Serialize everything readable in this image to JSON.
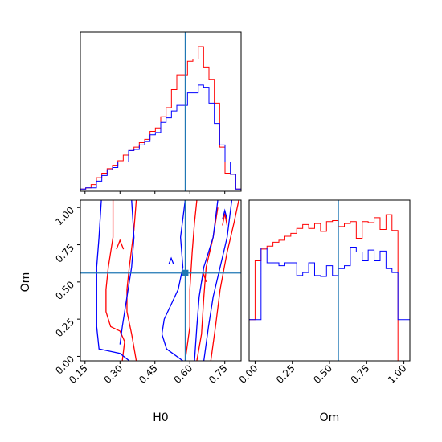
{
  "chart_data": {
    "type": "corner",
    "parameters": [
      "H0",
      "Om"
    ],
    "truths": {
      "H0": 0.58,
      "Om": 0.56
    },
    "colors": {
      "series_a": "#ff0000",
      "series_b": "#0000ff",
      "truth": "#1f77b4"
    },
    "panels": {
      "h0_hist": {
        "type": "histogram",
        "xlim": [
          0.13,
          0.82
        ],
        "bin_edges": [
          0.13,
          0.153,
          0.176,
          0.199,
          0.222,
          0.245,
          0.268,
          0.291,
          0.314,
          0.337,
          0.36,
          0.383,
          0.406,
          0.429,
          0.452,
          0.475,
          0.498,
          0.521,
          0.544,
          0.567,
          0.59,
          0.613,
          0.636,
          0.659,
          0.682,
          0.705,
          0.728,
          0.751,
          0.774,
          0.797,
          0.82
        ],
        "series": [
          {
            "color_key": "series_a",
            "counts": [
              0.2,
              0.3,
              0.6,
              1.2,
              1.6,
              2.0,
              2.3,
              2.7,
              3.2,
              3.6,
              3.9,
              4.3,
              4.6,
              5.3,
              5.6,
              6.6,
              7.4,
              9.0,
              10.3,
              10.3,
              11.5,
              11.7,
              12.8,
              11.0,
              9.9,
              7.8,
              3.9,
              1.6,
              1.5,
              0.2
            ]
          },
          {
            "color_key": "series_b",
            "counts": [
              0.2,
              0.3,
              0.3,
              0.9,
              1.4,
              1.9,
              2.1,
              2.6,
              2.6,
              3.6,
              3.7,
              4.1,
              4.4,
              5.0,
              5.2,
              6.1,
              6.5,
              7.1,
              7.6,
              7.6,
              8.7,
              8.7,
              9.4,
              9.2,
              7.8,
              6.0,
              4.1,
              2.6,
              1.5,
              0.2
            ]
          }
        ]
      },
      "om_hist": {
        "type": "histogram",
        "xlim": [
          -0.04,
          1.04
        ],
        "bin_edges": [
          -0.04,
          0.0,
          0.04,
          0.08,
          0.12,
          0.16,
          0.2,
          0.24,
          0.28,
          0.32,
          0.36,
          0.4,
          0.44,
          0.48,
          0.52,
          0.56,
          0.6,
          0.64,
          0.68,
          0.72,
          0.76,
          0.8,
          0.84,
          0.88,
          0.92,
          0.96,
          1.0,
          1.04
        ],
        "series": [
          {
            "color_key": "series_a",
            "counts": [
              4.2,
              10.2,
              11.4,
              11.7,
              12.1,
              12.3,
              12.7,
              13.0,
              13.5,
              13.9,
              13.5,
              14.0,
              13.2,
              14.2,
              14.3,
              13.7,
              14.0,
              14.2,
              12.5,
              14.2,
              14.1,
              14.6,
              13.4,
              14.9,
              13.3,
              0,
              0
            ]
          },
          {
            "color_key": "series_b",
            "counts": [
              4.2,
              4.2,
              11.5,
              10.0,
              10.0,
              9.7,
              10.0,
              10.0,
              8.7,
              9.0,
              10.0,
              8.7,
              8.6,
              9.7,
              8.7,
              9.4,
              9.7,
              11.6,
              11.1,
              10.2,
              11.3,
              10.2,
              11.2,
              9.4,
              9.0,
              4.2,
              4.2
            ]
          }
        ]
      },
      "h0_om_contour": {
        "type": "contour",
        "xlim": [
          0.13,
          0.82
        ],
        "ylim": [
          -0.03,
          1.05
        ],
        "contours": [
          {
            "color_key": "series_a",
            "points": [
              [
                0.27,
                1.05
              ],
              [
                0.27,
                0.8
              ],
              [
                0.25,
                0.6
              ],
              [
                0.24,
                0.45
              ],
              [
                0.24,
                0.3
              ],
              [
                0.26,
                0.2
              ],
              [
                0.3,
                0.17
              ],
              [
                0.32,
                0.1
              ],
              [
                0.31,
                -0.03
              ]
            ]
          },
          {
            "color_key": "series_a",
            "points": [
              [
                0.37,
                1.05
              ],
              [
                0.36,
                0.85
              ],
              [
                0.34,
                0.6
              ],
              [
                0.33,
                0.45
              ],
              [
                0.33,
                0.3
              ],
              [
                0.35,
                0.15
              ],
              [
                0.37,
                -0.03
              ]
            ]
          },
          {
            "color_key": "series_a",
            "points": [
              [
                0.58,
                -0.03
              ],
              [
                0.6,
                0.2
              ],
              [
                0.6,
                0.45
              ],
              [
                0.61,
                0.7
              ],
              [
                0.62,
                0.9
              ],
              [
                0.63,
                1.05
              ]
            ]
          },
          {
            "color_key": "series_a",
            "points": [
              [
                0.69,
                -0.03
              ],
              [
                0.71,
                0.2
              ],
              [
                0.73,
                0.45
              ],
              [
                0.76,
                0.7
              ],
              [
                0.79,
                0.9
              ],
              [
                0.81,
                1.05
              ]
            ]
          },
          {
            "color_key": "series_a",
            "points": [
              [
                0.63,
                -0.03
              ],
              [
                0.65,
                0.15
              ],
              [
                0.66,
                0.4
              ],
              [
                0.67,
                0.6
              ],
              [
                0.7,
                0.8
              ],
              [
                0.72,
                1.0
              ]
            ]
          },
          {
            "color_key": "series_a",
            "points": [
              [
                0.285,
                0.72
              ],
              [
                0.3,
                0.78
              ],
              [
                0.315,
                0.72
              ]
            ]
          },
          {
            "color_key": "series_a",
            "points": [
              [
                0.65,
                0.5
              ],
              [
                0.66,
                0.55
              ],
              [
                0.67,
                0.5
              ]
            ]
          },
          {
            "color_key": "series_a",
            "points": [
              [
                0.74,
                0.88
              ],
              [
                0.75,
                0.96
              ],
              [
                0.76,
                0.88
              ]
            ]
          },
          {
            "color_key": "series_b",
            "points": [
              [
                0.22,
                1.05
              ],
              [
                0.21,
                0.8
              ],
              [
                0.2,
                0.6
              ],
              [
                0.2,
                0.4
              ],
              [
                0.2,
                0.2
              ],
              [
                0.21,
                0.05
              ],
              [
                0.3,
                0.02
              ],
              [
                0.34,
                -0.03
              ]
            ]
          },
          {
            "color_key": "series_b",
            "points": [
              [
                0.35,
                1.05
              ],
              [
                0.36,
                0.8
              ],
              [
                0.35,
                0.6
              ],
              [
                0.33,
                0.4
              ],
              [
                0.31,
                0.2
              ],
              [
                0.3,
                0.08
              ]
            ]
          },
          {
            "color_key": "series_b",
            "points": [
              [
                0.57,
                -0.03
              ],
              [
                0.5,
                0.05
              ],
              [
                0.48,
                0.15
              ],
              [
                0.49,
                0.25
              ],
              [
                0.52,
                0.35
              ],
              [
                0.55,
                0.45
              ],
              [
                0.57,
                0.6
              ],
              [
                0.56,
                0.8
              ],
              [
                0.58,
                1.05
              ]
            ]
          },
          {
            "color_key": "series_b",
            "points": [
              [
                0.62,
                -0.03
              ],
              [
                0.63,
                0.2
              ],
              [
                0.64,
                0.4
              ],
              [
                0.66,
                0.6
              ],
              [
                0.7,
                0.8
              ],
              [
                0.72,
                1.05
              ]
            ]
          },
          {
            "color_key": "series_b",
            "points": [
              [
                0.66,
                -0.03
              ],
              [
                0.68,
                0.2
              ],
              [
                0.7,
                0.4
              ],
              [
                0.73,
                0.6
              ],
              [
                0.76,
                0.8
              ],
              [
                0.78,
                1.05
              ]
            ]
          },
          {
            "color_key": "series_b",
            "points": [
              [
                0.51,
                0.62
              ],
              [
                0.52,
                0.66
              ],
              [
                0.53,
                0.62
              ]
            ]
          },
          {
            "color_key": "series_b",
            "points": [
              [
                0.74,
                0.92
              ],
              [
                0.75,
                0.98
              ],
              [
                0.76,
                0.92
              ]
            ]
          }
        ]
      }
    },
    "axes": {
      "h0": {
        "label": "H0",
        "ticks": [
          0.15,
          0.3,
          0.45,
          0.6,
          0.75
        ],
        "tick_labels": [
          "0.15",
          "0.30",
          "0.45",
          "0.60",
          "0.75"
        ]
      },
      "om_y": {
        "label": "Om",
        "ticks": [
          0.0,
          0.25,
          0.5,
          0.75,
          1.0
        ],
        "tick_labels": [
          "0.00",
          "0.25",
          "0.50",
          "0.75",
          "1.00"
        ]
      },
      "om_x": {
        "label": "Om",
        "ticks": [
          0.0,
          0.25,
          0.5,
          0.75,
          1.0
        ],
        "tick_labels": [
          "0.00",
          "0.25",
          "0.50",
          "0.75",
          "1.00"
        ]
      }
    }
  }
}
